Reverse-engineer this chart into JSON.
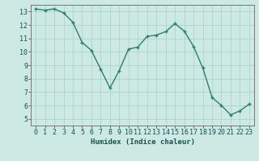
{
  "x": [
    0,
    1,
    2,
    3,
    4,
    5,
    6,
    7,
    8,
    9,
    10,
    11,
    12,
    13,
    14,
    15,
    16,
    17,
    18,
    19,
    20,
    21,
    22,
    23
  ],
  "y": [
    13.2,
    13.1,
    13.2,
    12.9,
    12.2,
    10.7,
    10.1,
    8.7,
    7.3,
    8.6,
    10.2,
    10.35,
    11.15,
    11.25,
    11.5,
    12.1,
    11.55,
    10.4,
    8.8,
    6.6,
    6.0,
    5.3,
    5.6,
    6.1
  ],
  "line_color": "#2e7d6e",
  "marker": "+",
  "marker_size": 3.5,
  "marker_lw": 1.0,
  "line_width": 1.0,
  "bg_color": "#cce9e4",
  "grid_color": "#aed4ce",
  "xlabel": "Humidex (Indice chaleur)",
  "xlim": [
    -0.5,
    23.5
  ],
  "ylim": [
    4.5,
    13.5
  ],
  "yticks": [
    5,
    6,
    7,
    8,
    9,
    10,
    11,
    12,
    13
  ],
  "xticks": [
    0,
    1,
    2,
    3,
    4,
    5,
    6,
    7,
    8,
    9,
    10,
    11,
    12,
    13,
    14,
    15,
    16,
    17,
    18,
    19,
    20,
    21,
    22,
    23
  ],
  "xlabel_fontsize": 6.5,
  "tick_fontsize": 6.0,
  "spine_color": "#666666",
  "text_color": "#1a5050"
}
